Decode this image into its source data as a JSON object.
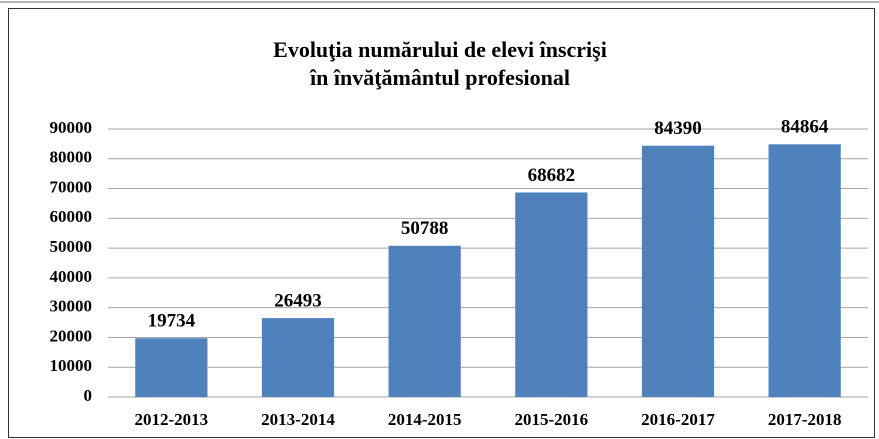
{
  "chart_data": {
    "type": "bar",
    "title": [
      "Evoluţia numărului de elevi înscrişi",
      "în învăţământul profesional"
    ],
    "categories": [
      "2012-2013",
      "2013-2014",
      "2014-2015",
      "2015-2016",
      "2016-2017",
      "2017-2018"
    ],
    "values": [
      19734,
      26493,
      50788,
      68682,
      84390,
      84864
    ],
    "color": "#4f81bd",
    "ylim": [
      0,
      90000
    ],
    "yticks": [
      0,
      10000,
      20000,
      30000,
      40000,
      50000,
      60000,
      70000,
      80000,
      90000
    ],
    "grid": true
  }
}
